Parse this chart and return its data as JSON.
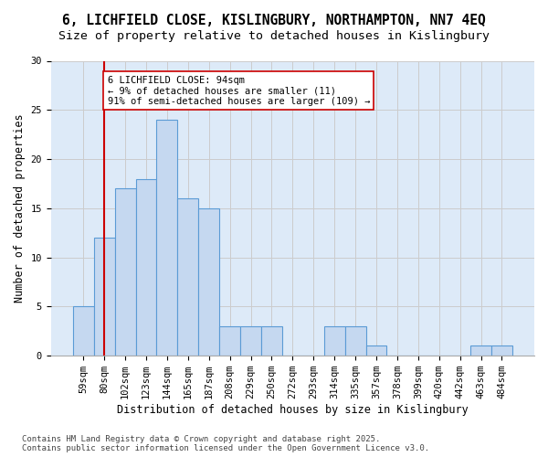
{
  "title_line1": "6, LICHFIELD CLOSE, KISLINGBURY, NORTHAMPTON, NN7 4EQ",
  "title_line2": "Size of property relative to detached houses in Kislingbury",
  "xlabel": "Distribution of detached houses by size in Kislingbury",
  "ylabel": "Number of detached properties",
  "bar_values": [
    5,
    12,
    17,
    18,
    24,
    16,
    15,
    3,
    3,
    3,
    0,
    0,
    3,
    3,
    1,
    0,
    0,
    0,
    0,
    1,
    1
  ],
  "bin_labels": [
    "59sqm",
    "80sqm",
    "102sqm",
    "123sqm",
    "144sqm",
    "165sqm",
    "187sqm",
    "208sqm",
    "229sqm",
    "250sqm",
    "272sqm",
    "293sqm",
    "314sqm",
    "335sqm",
    "357sqm",
    "378sqm",
    "399sqm",
    "420sqm",
    "442sqm",
    "463sqm",
    "484sqm"
  ],
  "bar_color": "#c5d8f0",
  "bar_edge_color": "#5b9bd5",
  "vline_x": 1.0,
  "vline_color": "#cc0000",
  "annotation_text": "6 LICHFIELD CLOSE: 94sqm\n← 9% of detached houses are smaller (11)\n91% of semi-detached houses are larger (109) →",
  "annotation_box_color": "#ffffff",
  "annotation_box_edge_color": "#cc0000",
  "ylim": [
    0,
    30
  ],
  "yticks": [
    0,
    5,
    10,
    15,
    20,
    25,
    30
  ],
  "grid_color": "#cccccc",
  "bg_color": "#ddeaf8",
  "footer_text": "Contains HM Land Registry data © Crown copyright and database right 2025.\nContains public sector information licensed under the Open Government Licence v3.0.",
  "title_fontsize": 10.5,
  "subtitle_fontsize": 9.5,
  "axis_label_fontsize": 8.5,
  "tick_fontsize": 7.5,
  "annotation_fontsize": 7.5,
  "footer_fontsize": 6.5
}
